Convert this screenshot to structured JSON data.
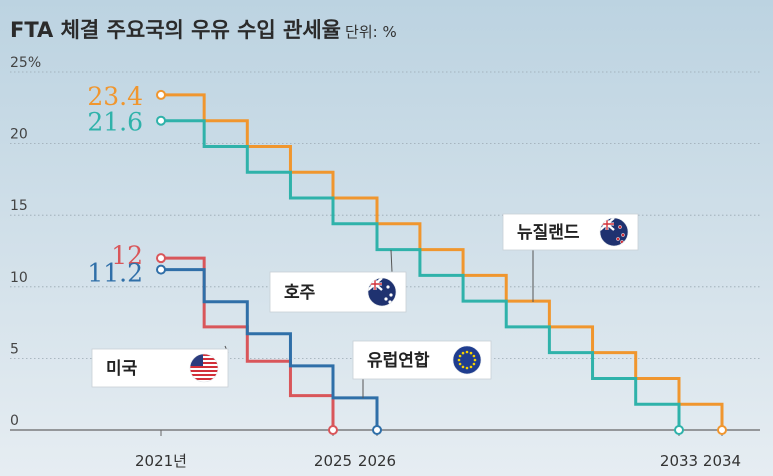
{
  "title": "FTA 체결 주요국의 우유 수입 관세율",
  "unit": "단위: %",
  "chart_data": {
    "type": "line",
    "title": "FTA 체결 주요국의 우유 수입 관세율",
    "ylabel": "",
    "xlabel": "",
    "ylim": [
      0,
      25
    ],
    "yticks": [
      "25%",
      "20",
      "15",
      "10",
      "5",
      "0"
    ],
    "xticks": [
      "2021년",
      "2025",
      "2026",
      "2033",
      "2034"
    ],
    "grid": true,
    "series": [
      {
        "name": "뉴질랜드",
        "color": "#f0962e",
        "start_label": "23.4",
        "x": [
          2021,
          2022,
          2023,
          2024,
          2025,
          2026,
          2027,
          2028,
          2029,
          2030,
          2031,
          2032,
          2033,
          2034
        ],
        "values": [
          23.4,
          21.6,
          19.8,
          18.0,
          16.2,
          14.4,
          12.6,
          10.8,
          9.0,
          7.2,
          5.4,
          3.6,
          1.8,
          0
        ]
      },
      {
        "name": "호주",
        "color": "#2fb2aa",
        "start_label": "21.6",
        "x": [
          2021,
          2022,
          2023,
          2024,
          2025,
          2026,
          2027,
          2028,
          2029,
          2030,
          2031,
          2032,
          2033
        ],
        "values": [
          21.6,
          19.8,
          18.0,
          16.2,
          14.4,
          12.6,
          10.8,
          9.0,
          7.2,
          5.4,
          3.6,
          1.8,
          0
        ]
      },
      {
        "name": "미국",
        "color": "#d9565a",
        "start_label": "12",
        "x": [
          2021,
          2022,
          2023,
          2024,
          2025
        ],
        "values": [
          12,
          7.2,
          4.8,
          2.4,
          0
        ]
      },
      {
        "name": "유럽연합",
        "color": "#2f6fa8",
        "start_label": "11.2",
        "x": [
          2021,
          2022,
          2023,
          2024,
          2025,
          2026
        ],
        "values": [
          11.2,
          8.96,
          6.72,
          4.48,
          2.24,
          0
        ]
      }
    ]
  },
  "callouts": [
    {
      "name": "뉴질랜드",
      "series": 0
    },
    {
      "name": "호주",
      "series": 1
    },
    {
      "name": "미국",
      "series": 2
    },
    {
      "name": "유럽연합",
      "series": 3
    }
  ]
}
